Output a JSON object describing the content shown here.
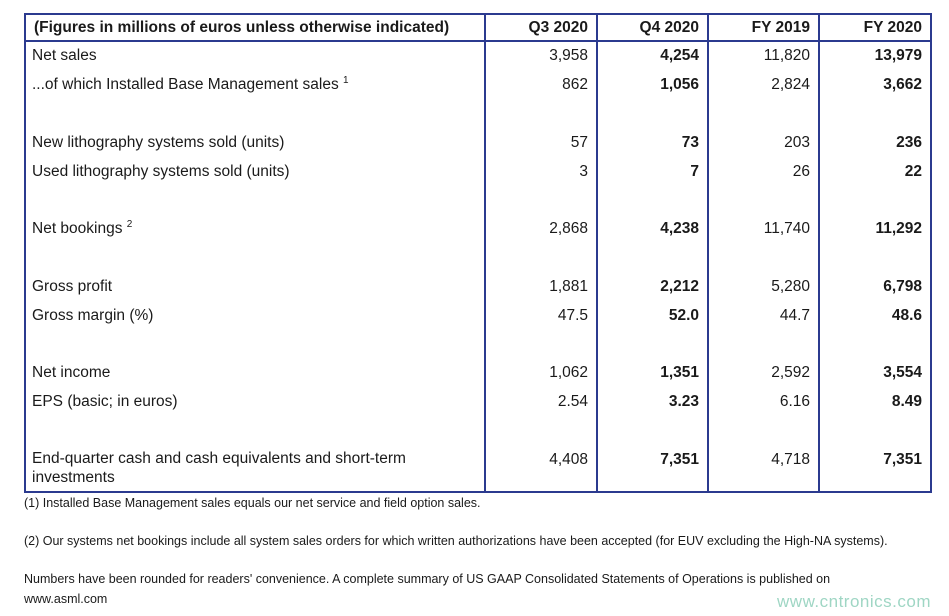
{
  "table": {
    "headers": [
      "(Figures in millions of euros unless otherwise indicated)",
      "Q3 2020",
      "Q4 2020",
      "FY 2019",
      "FY 2020"
    ],
    "rows": [
      {
        "label": "Net sales",
        "sup": "",
        "values": [
          "3,958",
          "4,254",
          "11,820",
          "13,979"
        ]
      },
      {
        "label": "...of which Installed Base Management sales",
        "sup": "1",
        "values": [
          "862",
          "1,056",
          "2,824",
          "3,662"
        ]
      },
      {
        "label": "New lithography systems sold (units)",
        "sup": "",
        "values": [
          "57",
          "73",
          "203",
          "236"
        ]
      },
      {
        "label": "Used lithography systems sold (units)",
        "sup": "",
        "values": [
          "3",
          "7",
          "26",
          "22"
        ]
      },
      {
        "label": "Net bookings",
        "sup": "2",
        "values": [
          "2,868",
          "4,238",
          "11,740",
          "11,292"
        ]
      },
      {
        "label": "Gross profit",
        "sup": "",
        "values": [
          "1,881",
          "2,212",
          "5,280",
          "6,798"
        ]
      },
      {
        "label": "Gross margin (%)",
        "sup": "",
        "values": [
          "47.5",
          "52.0",
          "44.7",
          "48.6"
        ]
      },
      {
        "label": "Net income",
        "sup": "",
        "values": [
          "1,062",
          "1,351",
          "2,592",
          "3,554"
        ]
      },
      {
        "label": "EPS (basic; in euros)",
        "sup": "",
        "values": [
          "2.54",
          "3.23",
          "6.16",
          "8.49"
        ]
      },
      {
        "label": "End-quarter cash and cash equivalents and short-term investments",
        "sup": "",
        "values": [
          "4,408",
          "7,351",
          "4,718",
          "7,351"
        ]
      }
    ]
  },
  "footnotes": {
    "note1": "(1) Installed Base Management sales equals our net service and field option sales.",
    "note2": "(2) Our systems net bookings include all system sales orders for which written authorizations have been accepted (for EUV excluding the High-NA systems).",
    "note3_line1": "Numbers have been rounded for readers' convenience. A complete summary of US GAAP Consolidated Statements of Operations is published on",
    "note3_line2": "www.asml.com"
  },
  "watermark": "www.cntronics.com",
  "colors": {
    "border": "#2b3a8f",
    "watermark": "#9fd6c4"
  }
}
